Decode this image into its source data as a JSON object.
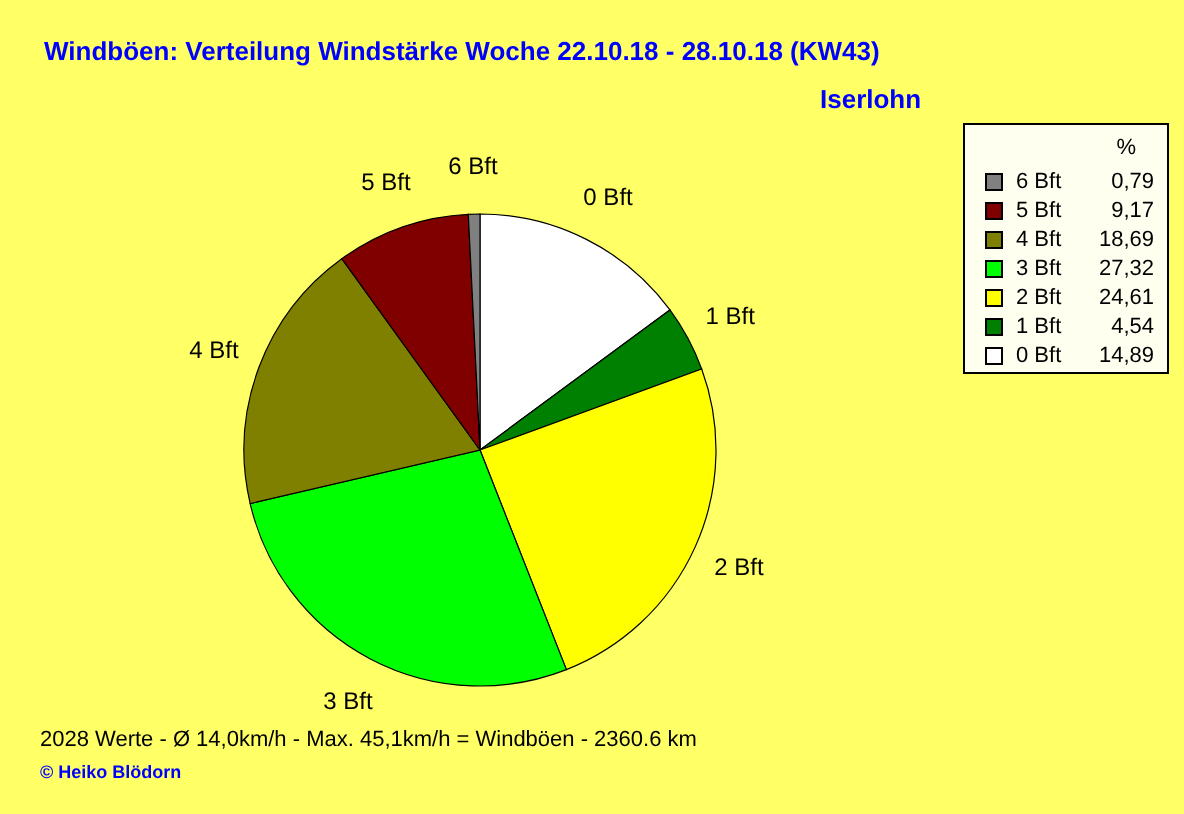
{
  "chart_data": {
    "type": "pie",
    "title": "Windböen: Verteilung Windstärke  Woche 22.10.18 - 28.10.18 (KW43)",
    "subtitle": "Iserlohn",
    "categories": [
      "0 Bft",
      "1 Bft",
      "2 Bft",
      "3 Bft",
      "4 Bft",
      "5 Bft",
      "6 Bft"
    ],
    "values": [
      14.89,
      4.54,
      24.61,
      27.32,
      18.69,
      9.17,
      0.79
    ],
    "value_labels": [
      "14,89",
      "4,54",
      "24,61",
      "27,32",
      "18,69",
      "9,17",
      "0,79"
    ],
    "colors": [
      "#ffffff",
      "#008000",
      "#ffff00",
      "#00ff00",
      "#808000",
      "#800000",
      "#808080"
    ],
    "legend_title": "%",
    "legend": "top right",
    "annotations": [
      "2028 Werte   -  Ø 14,0km/h  -  Max. 45,1km/h = Windböen   -   2360.6 km",
      "© Heiko Blödorn"
    ]
  }
}
